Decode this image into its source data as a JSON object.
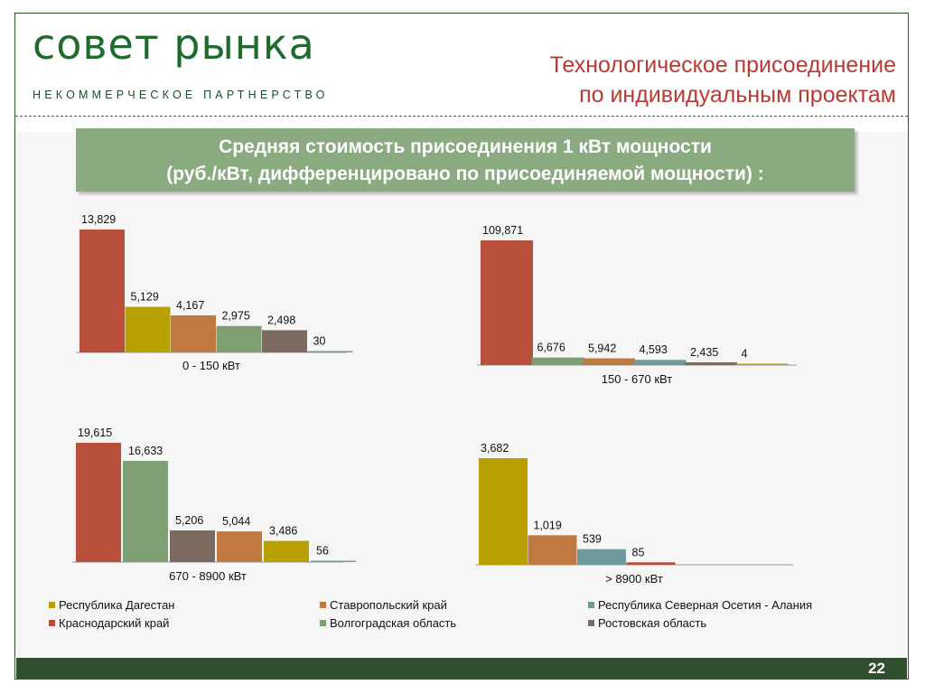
{
  "header": {
    "logo": "совет рынка",
    "logo_sub": "НЕКОММЕРЧЕСКОЕ ПАРТНЕРСТВО",
    "title_line1": "Технологическое присоединение",
    "title_line2": "по индивидуальным проектам"
  },
  "banner": {
    "line1": "Средняя стоимость присоединения 1 кВт мощности",
    "line2": "(руб./кВт, дифференцировано по присоединяемой мощности) :"
  },
  "colors": {
    "krasnodar": "#b8503c",
    "dagestan": "#b8a000",
    "stavropol": "#c07a40",
    "volgograd": "#7e9e74",
    "osetia": "#6e9a9c",
    "rostov": "#7a6a60"
  },
  "chart_data": [
    {
      "type": "bar",
      "xlabel": "0 - 150 кВт",
      "series": [
        {
          "name": "Краснодарский край",
          "key": "krasnodar",
          "value": 13829,
          "label": "13,829"
        },
        {
          "name": "Республика Дагестан",
          "key": "dagestan",
          "value": 5129,
          "label": "5,129"
        },
        {
          "name": "Ставропольский край",
          "key": "stavropol",
          "value": 4167,
          "label": "4,167"
        },
        {
          "name": "Волгоградская область",
          "key": "volgograd",
          "value": 2975,
          "label": "2,975"
        },
        {
          "name": "Ростовская область",
          "key": "rostov",
          "value": 2498,
          "label": "2,498"
        },
        {
          "name": "Республика Северная Осетия - Алания",
          "key": "osetia",
          "value": 30,
          "label": "30"
        }
      ]
    },
    {
      "type": "bar",
      "xlabel": "150  - 670 кВт",
      "series": [
        {
          "name": "Краснодарский край",
          "key": "krasnodar",
          "value": 109871,
          "label": "109,871"
        },
        {
          "name": "Волгоградская область",
          "key": "volgograd",
          "value": 6676,
          "label": "6,676"
        },
        {
          "name": "Ставропольский край",
          "key": "stavropol",
          "value": 5942,
          "label": "5,942"
        },
        {
          "name": "Республика Северная Осетия - Алания",
          "key": "osetia",
          "value": 4593,
          "label": "4,593"
        },
        {
          "name": "Ростовская область",
          "key": "rostov",
          "value": 2435,
          "label": "2,435"
        },
        {
          "name": "Республика Дагестан",
          "key": "dagestan",
          "value": 4,
          "label": "4"
        }
      ]
    },
    {
      "type": "bar",
      "xlabel": "670 - 8900 кВт",
      "series": [
        {
          "name": "Краснодарский край",
          "key": "krasnodar",
          "value": 19615,
          "label": "19,615"
        },
        {
          "name": "Волгоградская область",
          "key": "volgograd",
          "value": 16633,
          "label": "16,633"
        },
        {
          "name": "Ростовская область",
          "key": "rostov",
          "value": 5206,
          "label": "5,206"
        },
        {
          "name": "Ставропольский край",
          "key": "stavropol",
          "value": 5044,
          "label": "5,044"
        },
        {
          "name": "Республика Дагестан",
          "key": "dagestan",
          "value": 3486,
          "label": "3,486"
        },
        {
          "name": "Республика Северная Осетия - Алания",
          "key": "osetia",
          "value": 56,
          "label": "56"
        }
      ]
    },
    {
      "type": "bar",
      "xlabel": "> 8900 кВт",
      "series": [
        {
          "name": "Республика Дагестан",
          "key": "dagestan",
          "value": 3682,
          "label": "3,682"
        },
        {
          "name": "Ставропольский край",
          "key": "stavropol",
          "value": 1019,
          "label": "1,019"
        },
        {
          "name": "Республика Северная Осетия - Алания",
          "key": "osetia",
          "value": 539,
          "label": "539"
        },
        {
          "name": "Краснодарский край",
          "key": "krasnodar",
          "value": 85,
          "label": "85"
        }
      ]
    }
  ],
  "legend": [
    {
      "label": "Республика Дагестан",
      "key": "dagestan"
    },
    {
      "label": "Ставропольский край",
      "key": "stavropol"
    },
    {
      "label": "Республика Северная Осетия - Алания",
      "key": "osetia"
    },
    {
      "label": "Краснодарский край",
      "key": "krasnodar"
    },
    {
      "label": "Волгоградская область",
      "key": "volgograd"
    },
    {
      "label": "Ростовская область",
      "key": "rostov"
    }
  ],
  "footer": {
    "page_number": "22"
  }
}
